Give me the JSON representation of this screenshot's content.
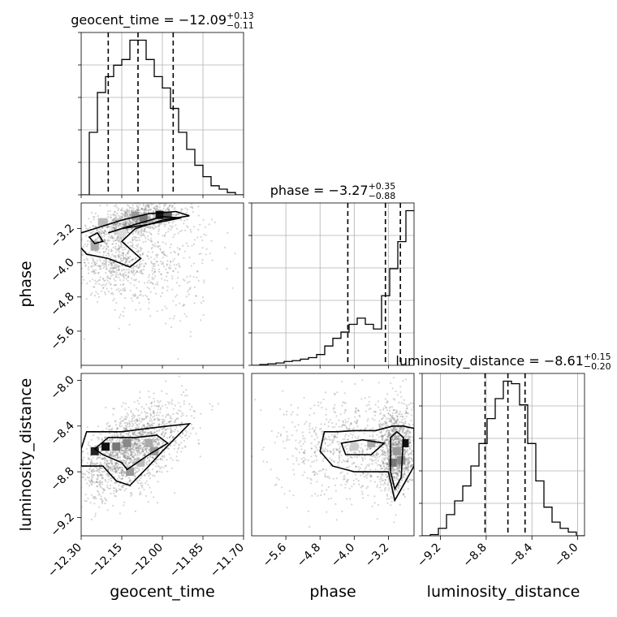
{
  "chart_data": {
    "type": "corner",
    "parameters": [
      "geocent_time",
      "phase",
      "luminosity_distance"
    ],
    "titles": [
      {
        "param": "geocent_time",
        "median": "−12.09",
        "plus": "+0.13",
        "minus": "−0.11"
      },
      {
        "param": "phase",
        "median": "−3.27",
        "plus": "+0.35",
        "minus": "−0.88"
      },
      {
        "param": "luminosity_distance",
        "median": "−8.61",
        "plus": "+0.15",
        "minus": "−0.20"
      }
    ],
    "ranges": {
      "geocent_time": [
        -12.3,
        -11.7
      ],
      "phase": [
        -6.4,
        -2.6
      ],
      "luminosity_distance": [
        -9.36,
        -7.94
      ]
    },
    "ticks": {
      "geocent_time": [
        -12.3,
        -12.15,
        -12.0,
        -11.85,
        -11.7
      ],
      "phase": [
        -5.6,
        -4.8,
        -4.0,
        -3.2
      ],
      "luminosity_distance": [
        -9.2,
        -8.8,
        -8.4,
        -8.0
      ]
    },
    "tick_labels": {
      "geocent_time": [
        "−12.30",
        "−12.15",
        "−12.00",
        "−11.85",
        "−11.70"
      ],
      "phase": [
        "−5.6",
        "−4.8",
        "−4.0",
        "−3.2"
      ],
      "luminosity_distance": [
        "−9.2",
        "−8.8",
        "−8.4",
        "−8.0"
      ]
    },
    "histograms": {
      "geocent_time": {
        "edges_start": -12.3,
        "bin_width": 0.03,
        "counts": [
          0,
          0.55,
          0.9,
          1.04,
          1.14,
          1.19,
          1.36,
          1.36,
          1.19,
          1.04,
          0.94,
          0.76,
          0.55,
          0.4,
          0.26,
          0.16,
          0.08,
          0.05,
          0.02,
          0
        ]
      },
      "phase": {
        "edges_start": -6.4,
        "bin_width": 0.19,
        "counts": [
          0,
          0.01,
          0.02,
          0.03,
          0.05,
          0.06,
          0.08,
          0.1,
          0.14,
          0.25,
          0.35,
          0.43,
          0.53,
          0.61,
          0.53,
          0.47,
          0.9,
          1.25,
          1.6,
          2.0
        ]
      },
      "luminosity_distance": {
        "edges_start": -9.36,
        "bin_width": 0.071,
        "counts": [
          0,
          0.01,
          0.06,
          0.17,
          0.28,
          0.4,
          0.56,
          0.74,
          0.94,
          1.1,
          1.24,
          1.22,
          1.05,
          0.74,
          0.44,
          0.23,
          0.11,
          0.06,
          0.03,
          0
        ]
      }
    },
    "quantile_lines": {
      "geocent_time": [
        -12.2,
        -12.09,
        -11.96
      ],
      "phase": [
        -4.15,
        -3.27,
        -2.92
      ],
      "luminosity_distance": [
        -8.81,
        -8.61,
        -8.46
      ]
    },
    "grid": true
  }
}
